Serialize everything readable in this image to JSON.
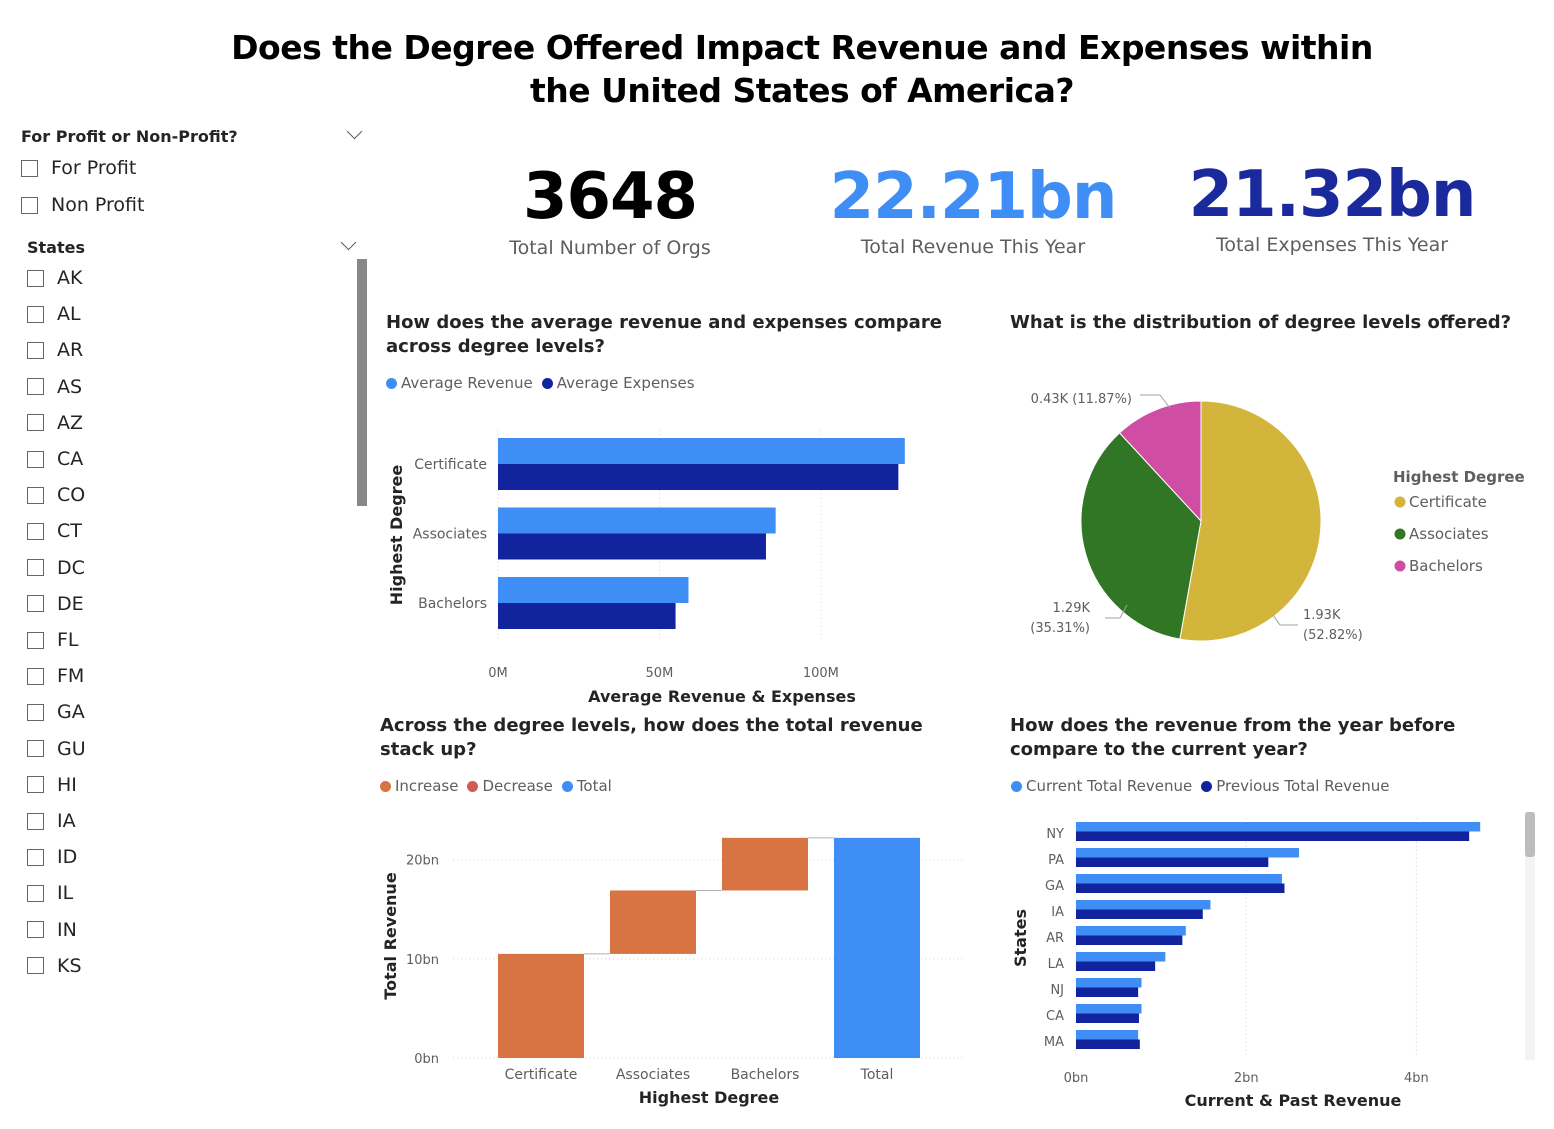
{
  "page_title": "Does the Degree Offered Impact Revenue and Expenses within the United States of America?",
  "slicers": {
    "profit": {
      "title": "For Profit or Non-Profit?",
      "options": [
        "For Profit",
        "Non Profit"
      ]
    },
    "states": {
      "title": "States",
      "options": [
        "AK",
        "AL",
        "AR",
        "AS",
        "AZ",
        "CA",
        "CO",
        "CT",
        "DC",
        "DE",
        "FL",
        "FM",
        "GA",
        "GU",
        "HI",
        "IA",
        "ID",
        "IL",
        "IN",
        "KS"
      ]
    }
  },
  "kpis": [
    {
      "value": "3648",
      "label": "Total Number of Orgs",
      "color": "#000000"
    },
    {
      "value": "22.21bn",
      "label": "Total Revenue This Year",
      "color": "#3f8ef5"
    },
    {
      "value": "21.32bn",
      "label": "Total Expenses This Year",
      "color": "#1a2a9c"
    }
  ],
  "chart_data": [
    {
      "id": "avg_rev_exp",
      "type": "bar",
      "orientation": "horizontal",
      "title": "How does the average revenue and expenses compare across degree levels?",
      "categories": [
        "Certificate",
        "Associates",
        "Bachelors"
      ],
      "series": [
        {
          "name": "Average Revenue",
          "color": "#3f8ef5",
          "values": [
            126,
            86,
            59
          ]
        },
        {
          "name": "Average Expenses",
          "color": "#12239e",
          "values": [
            124,
            83,
            55
          ]
        }
      ],
      "xlabel": "Average Revenue & Expenses",
      "ylabel": "Highest Degree",
      "xlim": [
        0,
        140
      ],
      "ticks": [
        {
          "v": 0,
          "label": "0M"
        },
        {
          "v": 50,
          "label": "50M"
        },
        {
          "v": 100,
          "label": "100M"
        }
      ],
      "grid": true,
      "legend": "top-left"
    },
    {
      "id": "degree_pie",
      "type": "pie",
      "title": "What is the distribution of degree levels offered?",
      "legend_title": "Highest Degree",
      "slices": [
        {
          "name": "Certificate",
          "value": 52.82,
          "label": "1.93K (52.82%)",
          "color": "#d4b53c"
        },
        {
          "name": "Associates",
          "value": 35.31,
          "label": "1.29K (35.31%)",
          "color": "#307624"
        },
        {
          "name": "Bachelors",
          "value": 11.87,
          "label": "0.43K (11.87%)",
          "color": "#cf4ea3"
        }
      ],
      "legend": "right"
    },
    {
      "id": "waterfall",
      "type": "bar",
      "subtype": "waterfall",
      "title": "Across the degree levels, how does the total revenue stack up?",
      "legend_entries": [
        {
          "name": "Increase",
          "color": "#d87444"
        },
        {
          "name": "Decrease",
          "color": "#d15a55"
        },
        {
          "name": "Total",
          "color": "#3f8ef5"
        }
      ],
      "categories": [
        "Certificate",
        "Associates",
        "Bachelors",
        "Total"
      ],
      "steps": [
        {
          "start": 0,
          "end": 10.5,
          "kind": "Increase"
        },
        {
          "start": 10.5,
          "end": 16.9,
          "kind": "Increase"
        },
        {
          "start": 16.9,
          "end": 22.21,
          "kind": "Increase"
        },
        {
          "start": 0,
          "end": 22.21,
          "kind": "Total"
        }
      ],
      "xlabel": "Highest Degree",
      "ylabel": "Total Revenue",
      "ylim": [
        0,
        23
      ],
      "ticks": [
        {
          "v": 0,
          "label": "0bn"
        },
        {
          "v": 10,
          "label": "10bn"
        },
        {
          "v": 20,
          "label": "20bn"
        }
      ],
      "grid": true,
      "legend": "top-left"
    },
    {
      "id": "state_rev",
      "type": "bar",
      "orientation": "horizontal",
      "title": "How does the revenue from the year before compare to the current year?",
      "categories": [
        "NY",
        "PA",
        "GA",
        "IA",
        "AR",
        "LA",
        "NJ",
        "CA",
        "MA"
      ],
      "series": [
        {
          "name": "Current Total Revenue",
          "color": "#3f8ef5",
          "values": [
            4.75,
            2.62,
            2.42,
            1.58,
            1.29,
            1.05,
            0.77,
            0.77,
            0.73
          ]
        },
        {
          "name": "Previous Total Revenue",
          "color": "#12239e",
          "values": [
            4.62,
            2.26,
            2.45,
            1.49,
            1.25,
            0.93,
            0.73,
            0.74,
            0.75
          ]
        }
      ],
      "xlabel": "Current & Past Revenue",
      "ylabel": "States",
      "xlim": [
        0,
        5.1
      ],
      "ticks": [
        {
          "v": 0,
          "label": "0bn"
        },
        {
          "v": 2,
          "label": "2bn"
        },
        {
          "v": 4,
          "label": "4bn"
        }
      ],
      "grid": true,
      "legend": "top-left"
    }
  ]
}
